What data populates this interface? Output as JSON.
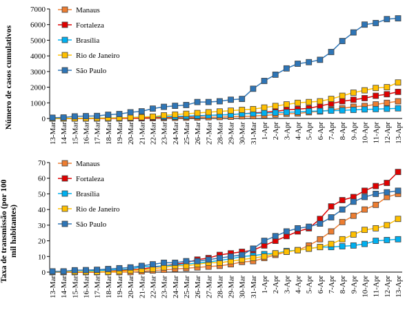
{
  "chart_data": [
    {
      "type": "line",
      "ylabel": [
        "Número de casos cumulativos"
      ],
      "categories": [
        "13-Mar",
        "14-Mar",
        "15-Mar",
        "16-Mar",
        "17-Mar",
        "18-Mar",
        "19-Mar",
        "20-Mar",
        "21-Mar",
        "22-Mar",
        "23-Mar",
        "24-Mar",
        "25-Mar",
        "26-Mar",
        "27-Mar",
        "28-Mar",
        "29-Mar",
        "30-Mar",
        "31-Mar",
        "1-Apr",
        "2-Apr",
        "3-Apr",
        "4-Apr",
        "5-Apr",
        "6-Apr",
        "7-Apr",
        "8-Apr",
        "9-Apr",
        "10-Apr",
        "11-Apr",
        "12-Apr",
        "13-Apr"
      ],
      "series": [
        {
          "name": "Manaus",
          "color": "#ED7D31",
          "values": [
            0,
            0,
            0,
            0,
            1,
            2,
            3,
            5,
            10,
            20,
            30,
            40,
            50,
            60,
            80,
            90,
            110,
            140,
            150,
            200,
            250,
            300,
            320,
            400,
            450,
            550,
            650,
            750,
            800,
            900,
            1000,
            1100
          ]
        },
        {
          "name": "Fortaleza",
          "color": "#E00000",
          "values": [
            0,
            0,
            1,
            2,
            3,
            5,
            10,
            20,
            30,
            60,
            80,
            100,
            120,
            150,
            200,
            220,
            250,
            300,
            350,
            400,
            450,
            550,
            600,
            650,
            800,
            950,
            1100,
            1200,
            1300,
            1450,
            1550,
            1700
          ]
        },
        {
          "name": "Brasília",
          "color": "#00B0F0",
          "values": [
            2,
            5,
            10,
            15,
            30,
            40,
            50,
            60,
            100,
            110,
            120,
            130,
            150,
            180,
            200,
            230,
            250,
            300,
            320,
            350,
            370,
            400,
            420,
            460,
            480,
            500,
            520,
            550,
            580,
            600,
            620,
            650
          ]
        },
        {
          "name": "Rio de Janeiro",
          "color": "#FFC000",
          "values": [
            5,
            5,
            10,
            15,
            20,
            30,
            40,
            60,
            80,
            120,
            200,
            250,
            300,
            350,
            400,
            450,
            500,
            550,
            600,
            700,
            800,
            900,
            1000,
            1050,
            1100,
            1250,
            1450,
            1650,
            1800,
            1950,
            2000,
            2300
          ]
        },
        {
          "name": "São Paulo",
          "color": "#2E75B6",
          "values": [
            50,
            65,
            136,
            152,
            164,
            240,
            286,
            396,
            459,
            631,
            745,
            810,
            862,
            1052,
            1052,
            1100,
            1200,
            1250,
            1900,
            2400,
            2800,
            3200,
            3500,
            3600,
            3750,
            4250,
            4950,
            5500,
            6000,
            6100,
            6350,
            6400
          ]
        }
      ],
      "ylim": [
        0,
        7000
      ],
      "yticks": [
        0,
        1000,
        2000,
        3000,
        4000,
        5000,
        6000,
        7000
      ],
      "legend": "top-left"
    },
    {
      "type": "line",
      "ylabel": [
        "Taxa de transmissão (por 100",
        "mil habitantes)"
      ],
      "categories": [
        "13-Mar",
        "14-Mar",
        "15-Mar",
        "16-Mar",
        "17-Mar",
        "18-Mar",
        "19-Mar",
        "20-Mar",
        "21-Mar",
        "22-Mar",
        "23-Mar",
        "24-Mar",
        "25-Mar",
        "26-Mar",
        "27-Mar",
        "28-Mar",
        "29-Mar",
        "30-Mar",
        "31-Mar",
        "1-Apr",
        "2-Apr",
        "3-Apr",
        "4-Apr",
        "5-Apr",
        "6-Apr",
        "7-Apr",
        "8-Apr",
        "9-Apr",
        "10-Apr",
        "11-Apr",
        "12-Apr",
        "13-Apr"
      ],
      "series": [
        {
          "name": "Manaus",
          "color": "#ED7D31",
          "values": [
            0,
            0,
            0,
            0,
            0,
            0,
            0,
            0,
            0.5,
            1,
            1.5,
            2,
            2.5,
            3,
            3.5,
            4,
            5,
            6.5,
            7,
            9,
            11,
            13,
            14,
            17,
            21,
            26,
            32,
            36,
            40,
            43,
            48,
            50
          ]
        },
        {
          "name": "Fortaleza",
          "color": "#E00000",
          "values": [
            0,
            0,
            0,
            0,
            0,
            0.5,
            1,
            1.5,
            2,
            3,
            4,
            5,
            6,
            8,
            9,
            11,
            12,
            13,
            14,
            17,
            20,
            23,
            26,
            28,
            34,
            42,
            46,
            48,
            52,
            55,
            57,
            64
          ]
        },
        {
          "name": "Brasília",
          "color": "#00B0F0",
          "values": [
            0,
            0.2,
            0.3,
            0.5,
            1,
            1.3,
            1.7,
            2,
            3.5,
            3.5,
            4,
            4.5,
            5,
            6,
            6.5,
            7.5,
            8.5,
            10,
            10.5,
            11.5,
            12,
            13.5,
            14,
            15,
            16,
            16,
            16.5,
            17,
            18,
            20,
            20.5,
            21
          ]
        },
        {
          "name": "Rio de Janeiro",
          "color": "#FFC000",
          "values": [
            0.2,
            0.2,
            0.2,
            0.2,
            0.2,
            0.2,
            0.5,
            1,
            1.5,
            2,
            3,
            4,
            4,
            5,
            6,
            6,
            7,
            8,
            9,
            10,
            12,
            13,
            14,
            15,
            16,
            18,
            21,
            24,
            27,
            28,
            30,
            34
          ]
        },
        {
          "name": "São Paulo",
          "color": "#2E75B6",
          "values": [
            0.5,
            0.5,
            1.2,
            1.3,
            1.5,
            2,
            2.5,
            3,
            4,
            5,
            6,
            6,
            7,
            7,
            8,
            9,
            10,
            11,
            15,
            20,
            23,
            26,
            28,
            29,
            31,
            35,
            40,
            45,
            48,
            50,
            51,
            52
          ]
        }
      ],
      "ylim": [
        0,
        70
      ],
      "yticks": [
        0,
        10,
        20,
        30,
        40,
        50,
        60,
        70
      ],
      "legend": "top-left"
    }
  ]
}
